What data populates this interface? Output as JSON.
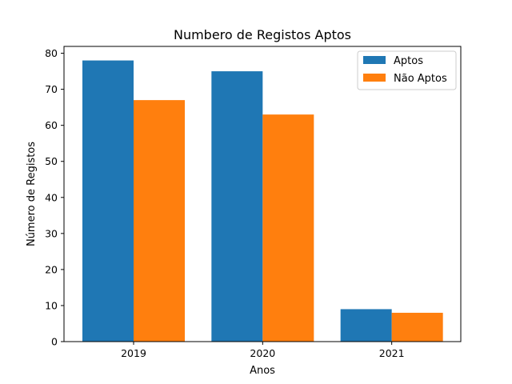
{
  "chart_data": {
    "type": "bar",
    "title": "Numbero de Registos Aptos",
    "xlabel": "Anos",
    "ylabel": "Número de Registos",
    "categories": [
      "2019",
      "2020",
      "2021"
    ],
    "series": [
      {
        "name": "Aptos",
        "values": [
          78,
          75,
          9
        ],
        "color": "#1f77b4"
      },
      {
        "name": "Não Aptos",
        "values": [
          67,
          63,
          8
        ],
        "color": "#ff7f0e"
      }
    ],
    "ylim": [
      0,
      81.9
    ],
    "yticks": [
      0,
      10,
      20,
      30,
      40,
      50,
      60,
      70,
      80
    ],
    "grid": false,
    "legend_position": "top-right"
  }
}
